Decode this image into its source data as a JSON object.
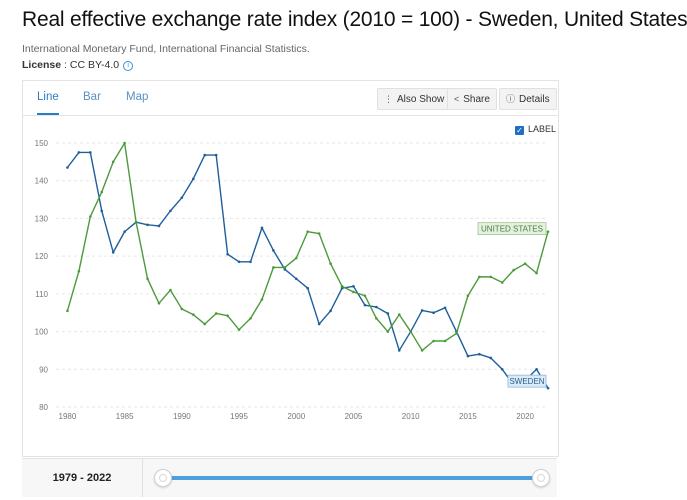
{
  "title": "Real effective exchange rate index (2010 = 100) - Sweden, United States",
  "source": "International Monetary Fund, International Financial Statistics.",
  "license": {
    "label": "License",
    "value": "CC BY-4.0"
  },
  "tabs": [
    {
      "label": "Line",
      "active": true
    },
    {
      "label": "Bar",
      "active": false
    },
    {
      "label": "Map",
      "active": false
    }
  ],
  "buttons": {
    "also_show": "Also Show",
    "share": "Share",
    "details": "Details"
  },
  "label_toggle": {
    "text": "LABEL",
    "checked": true
  },
  "footer": {
    "range": "1979 - 2022"
  },
  "colors": {
    "sweden": "#1f5f99",
    "united_states": "#4c9a3c"
  },
  "chart_data": {
    "type": "line",
    "x": [
      1980,
      1981,
      1982,
      1983,
      1984,
      1985,
      1986,
      1987,
      1988,
      1989,
      1990,
      1991,
      1992,
      1993,
      1994,
      1995,
      1996,
      1997,
      1998,
      1999,
      2000,
      2001,
      2002,
      2003,
      2004,
      2005,
      2006,
      2007,
      2008,
      2009,
      2010,
      2011,
      2012,
      2013,
      2014,
      2015,
      2016,
      2017,
      2018,
      2019,
      2020,
      2021,
      2022
    ],
    "x_ticks": [
      "1980",
      "1985",
      "1990",
      "1995",
      "2000",
      "2005",
      "2010",
      "2015",
      "2020"
    ],
    "y_ticks": [
      "80",
      "90",
      "100",
      "110",
      "120",
      "130",
      "140",
      "150"
    ],
    "ylim": [
      80,
      150
    ],
    "xlim": [
      1979,
      2022
    ],
    "grid": true,
    "series": [
      {
        "name": "SWEDEN",
        "values": [
          143.5,
          147.5,
          147.5,
          132,
          121,
          126.5,
          129,
          128.3,
          128,
          132,
          135.5,
          140.5,
          146.8,
          146.8,
          120.5,
          118.5,
          118.5,
          127.5,
          121.5,
          116.5,
          114,
          111.5,
          102,
          105.5,
          111.5,
          112,
          107,
          106.5,
          104.8,
          95,
          100,
          105.6,
          105,
          106.3,
          100,
          93.5,
          94,
          93,
          90,
          85.8,
          87,
          90,
          85
        ]
      },
      {
        "name": "UNITED STATES",
        "values": [
          105.5,
          116,
          130.5,
          137,
          145,
          150,
          129,
          114,
          107.5,
          111,
          106,
          104.5,
          102,
          104.8,
          104.2,
          100.5,
          103.5,
          108.5,
          117,
          117,
          119.5,
          126.5,
          126,
          118,
          112,
          110.5,
          109.5,
          103.5,
          100,
          104.5,
          100,
          95,
          97.5,
          97.5,
          99.5,
          109.5,
          114.5,
          114.5,
          113,
          116.3,
          118,
          115.5,
          126.5
        ]
      }
    ]
  }
}
